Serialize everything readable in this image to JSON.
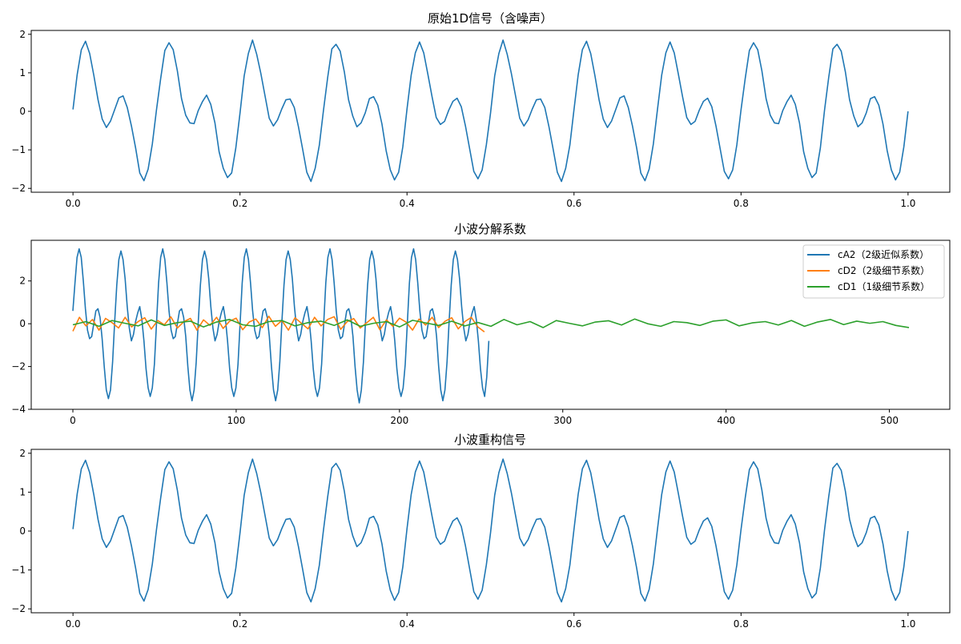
{
  "chart_data": [
    {
      "type": "line",
      "title": "原始1D信号（含噪声）",
      "xlim": [
        -0.05,
        1.05
      ],
      "ylim": [
        -2.1,
        2.1
      ],
      "xticks": [
        "0.0",
        "0.2",
        "0.4",
        "0.6",
        "0.8",
        "1.0"
      ],
      "yticks": [
        "-2",
        "-1",
        "0",
        "1",
        "2"
      ],
      "grid": false,
      "series": [
        {
          "color": "#1f77b4",
          "x_start": 0,
          "x_step": 0.005,
          "values": [
            0.05,
            0.95,
            1.6,
            1.82,
            1.5,
            0.93,
            0.3,
            -0.2,
            -0.42,
            -0.25,
            0.05,
            0.35,
            0.4,
            0.1,
            -0.38,
            -0.95,
            -1.6,
            -1.8,
            -1.5,
            -0.85,
            0.04,
            0.85,
            1.58,
            1.78,
            1.6,
            1.05,
            0.33,
            -0.1,
            -0.3,
            -0.32,
            0.02,
            0.25,
            0.42,
            0.18,
            -0.3,
            -1.05,
            -1.48,
            -1.72,
            -1.6,
            -0.95,
            -0.05,
            0.92,
            1.5,
            1.85,
            1.48,
            0.98,
            0.4,
            -0.18,
            -0.38,
            -0.22,
            0.06,
            0.3,
            0.32,
            0.1,
            -0.4,
            -0.98,
            -1.58,
            -1.82,
            -1.48,
            -0.88,
            0.03,
            0.88,
            1.62,
            1.74,
            1.56,
            1.02,
            0.3,
            -0.12,
            -0.4,
            -0.3,
            -0.04,
            0.33,
            0.38,
            0.16,
            -0.33,
            -1.02,
            -1.52,
            -1.78,
            -1.58,
            -0.92,
            0.06,
            0.94,
            1.52,
            1.8,
            1.52,
            0.96,
            0.38,
            -0.16,
            -0.34,
            -0.26,
            0.03,
            0.26,
            0.34,
            0.12,
            -0.38,
            -0.97,
            -1.56,
            -1.75,
            -1.52,
            -0.87,
            -0.05,
            0.92,
            1.5,
            1.85,
            1.48,
            0.98,
            0.4,
            -0.18,
            -0.38,
            -0.22,
            0.06,
            0.3,
            0.32,
            0.1,
            -0.4,
            -0.98,
            -1.58,
            -1.82,
            -1.48,
            -0.88,
            0.05,
            0.95,
            1.6,
            1.82,
            1.5,
            0.93,
            0.3,
            -0.2,
            -0.42,
            -0.25,
            0.05,
            0.35,
            0.4,
            0.1,
            -0.38,
            -0.95,
            -1.6,
            -1.8,
            -1.5,
            -0.85,
            0.06,
            0.94,
            1.52,
            1.8,
            1.52,
            0.96,
            0.38,
            -0.16,
            -0.34,
            -0.26,
            0.03,
            0.26,
            0.34,
            0.12,
            -0.38,
            -0.97,
            -1.56,
            -1.75,
            -1.52,
            -0.87,
            0.04,
            0.85,
            1.58,
            1.78,
            1.6,
            1.05,
            0.33,
            -0.1,
            -0.3,
            -0.32,
            0.02,
            0.25,
            0.42,
            0.18,
            -0.3,
            -1.05,
            -1.48,
            -1.72,
            -1.6,
            -0.95,
            0.03,
            0.88,
            1.62,
            1.74,
            1.56,
            1.02,
            0.3,
            -0.12,
            -0.4,
            -0.3,
            -0.04,
            0.33,
            0.38,
            0.16,
            -0.33,
            -1.02,
            -1.52,
            -1.78,
            -1.58,
            -0.92,
            0.0
          ]
        }
      ]
    },
    {
      "type": "line",
      "title": "小波分解系数",
      "xlim": [
        -25.5,
        537
      ],
      "ylim": [
        -4.0,
        3.9
      ],
      "xticks": [
        "0",
        "100",
        "200",
        "300",
        "400",
        "500"
      ],
      "yticks": [
        "-4",
        "-2",
        "0",
        "2"
      ],
      "grid": false,
      "legend": "top-right",
      "series": [
        {
          "name": "cA2（2级近似系数）",
          "color": "#1f77b4",
          "x_start": 0,
          "x_step": 1.28,
          "values": [
            0.6,
            1.9,
            3.1,
            3.5,
            3.1,
            2.0,
            0.7,
            -0.3,
            -0.7,
            -0.6,
            0.0,
            0.6,
            0.7,
            0.3,
            -0.7,
            -2.0,
            -3.1,
            -3.5,
            -3.1,
            -1.8,
            0.1,
            1.8,
            3.0,
            3.4,
            3.0,
            2.1,
            0.8,
            -0.2,
            -0.8,
            -0.5,
            0.1,
            0.5,
            0.8,
            0.2,
            -0.8,
            -2.1,
            -3.0,
            -3.4,
            -3.0,
            -1.9,
            0.0,
            1.9,
            3.1,
            3.5,
            3.0,
            1.9,
            0.6,
            -0.3,
            -0.7,
            -0.6,
            0.0,
            0.6,
            0.7,
            0.3,
            -0.6,
            -2.0,
            -3.1,
            -3.6,
            -3.1,
            -1.8,
            0.1,
            1.8,
            3.0,
            3.4,
            3.0,
            2.1,
            0.8,
            -0.2,
            -0.8,
            -0.5,
            0.1,
            0.5,
            0.8,
            0.2,
            -0.8,
            -2.1,
            -3.0,
            -3.4,
            -3.0,
            -1.9,
            0.0,
            1.9,
            3.1,
            3.5,
            3.0,
            1.9,
            0.6,
            -0.3,
            -0.7,
            -0.6,
            0.0,
            0.6,
            0.7,
            0.3,
            -0.6,
            -2.0,
            -3.1,
            -3.6,
            -3.1,
            -1.8,
            0.1,
            1.8,
            3.0,
            3.4,
            3.0,
            2.1,
            0.8,
            -0.2,
            -0.8,
            -0.5,
            0.1,
            0.5,
            0.8,
            0.2,
            -0.8,
            -2.1,
            -3.0,
            -3.4,
            -3.0,
            -1.9,
            0.0,
            1.9,
            3.1,
            3.5,
            3.0,
            1.9,
            0.6,
            -0.3,
            -0.7,
            -0.6,
            0.0,
            0.6,
            0.7,
            0.3,
            -0.6,
            -2.0,
            -3.1,
            -3.7,
            -3.1,
            -1.8,
            0.1,
            1.8,
            3.0,
            3.4,
            3.0,
            2.1,
            0.8,
            -0.2,
            -0.8,
            -0.5,
            0.1,
            0.5,
            0.8,
            0.2,
            -0.8,
            -2.1,
            -3.0,
            -3.4,
            -3.0,
            -1.9,
            0.0,
            1.9,
            3.1,
            3.5,
            3.0,
            1.9,
            0.6,
            -0.3,
            -0.7,
            -0.6,
            0.0,
            0.6,
            0.7,
            0.3,
            -0.6,
            -2.0,
            -3.1,
            -3.6,
            -3.1,
            -1.8,
            0.1,
            1.8,
            3.0,
            3.4,
            3.0,
            2.1,
            0.8,
            -0.2,
            -0.8,
            -0.5,
            0.1,
            0.5,
            0.8,
            0.2,
            -0.8,
            -2.1,
            -3.0,
            -3.4,
            -2.5,
            -0.8
          ]
        },
        {
          "name": "cD2（2级细节系数）",
          "color": "#ff7f0e",
          "x_start": 0,
          "x_step": 4,
          "values": [
            -0.35,
            0.3,
            -0.1,
            0.2,
            -0.3,
            0.25,
            0.05,
            -0.2,
            0.3,
            -0.15,
            0.1,
            0.28,
            -0.25,
            0.15,
            -0.05,
            0.32,
            -0.2,
            0.1,
            0.25,
            -0.3,
            0.18,
            -0.08,
            0.3,
            -0.22,
            0.12,
            0.26,
            -0.28,
            0.08,
            0.22,
            -0.18,
            0.35,
            -0.12,
            0.15,
            -0.3,
            0.28,
            0.02,
            -0.24,
            0.3,
            -0.1,
            0.2,
            0.33,
            -0.26,
            0.1,
            0.24,
            -0.2,
            0.05,
            0.3,
            -0.28,
            0.18,
            -0.12,
            0.26,
            0.08,
            -0.3,
            0.22,
            -0.06,
            0.3,
            -0.18,
            0.12,
            0.28,
            -0.24,
            0.1,
            0.3,
            -0.15,
            -0.38
          ]
        },
        {
          "name": "cD1（1级细节系数）",
          "color": "#2ca02c",
          "x_start": 0,
          "x_step": 8,
          "values": [
            -0.05,
            0.1,
            -0.12,
            0.15,
            0.02,
            -0.1,
            0.18,
            -0.08,
            0.05,
            0.12,
            -0.15,
            0.08,
            0.2,
            -0.05,
            -0.12,
            0.1,
            0.15,
            -0.1,
            0.05,
            0.12,
            -0.08,
            0.18,
            -0.12,
            0.02,
            0.1,
            -0.15,
            0.16,
            0.04,
            -0.08,
            0.12,
            -0.1,
            0.06,
            -0.12,
            0.2,
            -0.05,
            0.1,
            -0.18,
            0.15,
            0.02,
            -0.1,
            0.08,
            0.14,
            -0.06,
            0.22,
            0.0,
            -0.12,
            0.1,
            0.05,
            -0.08,
            0.12,
            0.18,
            -0.1,
            0.04,
            0.1,
            -0.06,
            0.15,
            -0.12,
            0.08,
            0.2,
            -0.04,
            0.12,
            0.02,
            0.1,
            -0.08,
            -0.18
          ]
        }
      ]
    },
    {
      "type": "line",
      "title": "小波重构信号",
      "xlim": [
        -0.05,
        1.05
      ],
      "ylim": [
        -2.1,
        2.1
      ],
      "xticks": [
        "0.0",
        "0.2",
        "0.4",
        "0.6",
        "0.8",
        "1.0"
      ],
      "yticks": [
        "-2",
        "-1",
        "0",
        "1",
        "2"
      ],
      "grid": false,
      "series": [
        {
          "color": "#1f77b4",
          "x_start": 0,
          "x_step": 0.005,
          "values": [
            0.05,
            0.95,
            1.6,
            1.82,
            1.5,
            0.93,
            0.3,
            -0.2,
            -0.42,
            -0.25,
            0.05,
            0.35,
            0.4,
            0.1,
            -0.38,
            -0.95,
            -1.6,
            -1.8,
            -1.5,
            -0.85,
            0.04,
            0.85,
            1.58,
            1.78,
            1.6,
            1.05,
            0.33,
            -0.1,
            -0.3,
            -0.32,
            0.02,
            0.25,
            0.42,
            0.18,
            -0.3,
            -1.05,
            -1.48,
            -1.72,
            -1.6,
            -0.95,
            -0.05,
            0.92,
            1.5,
            1.85,
            1.48,
            0.98,
            0.4,
            -0.18,
            -0.38,
            -0.22,
            0.06,
            0.3,
            0.32,
            0.1,
            -0.4,
            -0.98,
            -1.58,
            -1.82,
            -1.48,
            -0.88,
            0.03,
            0.88,
            1.62,
            1.74,
            1.56,
            1.02,
            0.3,
            -0.12,
            -0.4,
            -0.3,
            -0.04,
            0.33,
            0.38,
            0.16,
            -0.33,
            -1.02,
            -1.52,
            -1.78,
            -1.58,
            -0.92,
            0.06,
            0.94,
            1.52,
            1.8,
            1.52,
            0.96,
            0.38,
            -0.16,
            -0.34,
            -0.26,
            0.03,
            0.26,
            0.34,
            0.12,
            -0.38,
            -0.97,
            -1.56,
            -1.75,
            -1.52,
            -0.87,
            -0.05,
            0.92,
            1.5,
            1.85,
            1.48,
            0.98,
            0.4,
            -0.18,
            -0.38,
            -0.22,
            0.06,
            0.3,
            0.32,
            0.1,
            -0.4,
            -0.98,
            -1.58,
            -1.82,
            -1.48,
            -0.88,
            0.05,
            0.95,
            1.6,
            1.82,
            1.5,
            0.93,
            0.3,
            -0.2,
            -0.42,
            -0.25,
            0.05,
            0.35,
            0.4,
            0.1,
            -0.38,
            -0.95,
            -1.6,
            -1.8,
            -1.5,
            -0.85,
            0.06,
            0.94,
            1.52,
            1.8,
            1.52,
            0.96,
            0.38,
            -0.16,
            -0.34,
            -0.26,
            0.03,
            0.26,
            0.34,
            0.12,
            -0.38,
            -0.97,
            -1.56,
            -1.75,
            -1.52,
            -0.87,
            0.04,
            0.85,
            1.58,
            1.78,
            1.6,
            1.05,
            0.33,
            -0.1,
            -0.3,
            -0.32,
            0.02,
            0.25,
            0.42,
            0.18,
            -0.3,
            -1.05,
            -1.48,
            -1.72,
            -1.6,
            -0.95,
            0.03,
            0.88,
            1.62,
            1.74,
            1.56,
            1.02,
            0.3,
            -0.12,
            -0.4,
            -0.3,
            -0.04,
            0.33,
            0.38,
            0.16,
            -0.33,
            -1.02,
            -1.52,
            -1.78,
            -1.58,
            -0.92,
            0.0
          ]
        }
      ]
    }
  ]
}
